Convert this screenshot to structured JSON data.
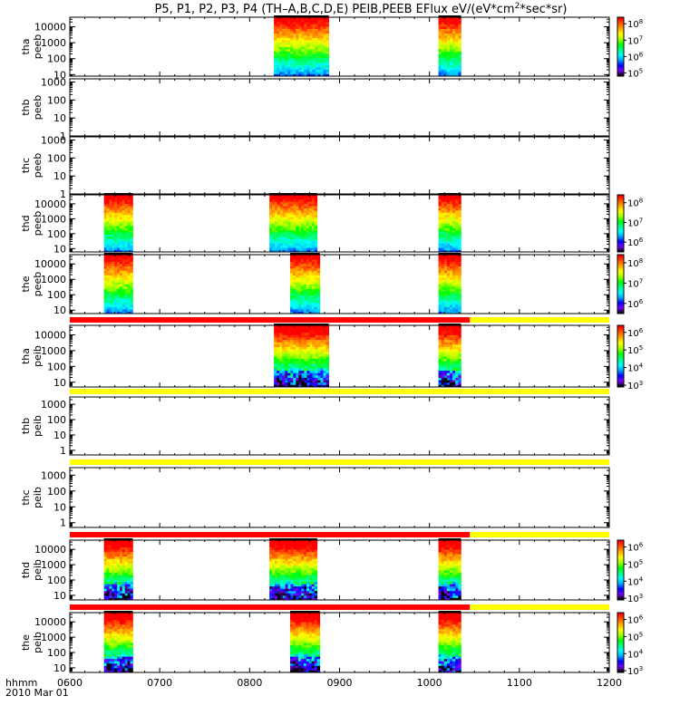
{
  "title_parts": [
    "P5, P1, P2, P3, P4 (TH–A,B,C,D,E) PEIB,PEEB EFlux eV/(eV*cm",
    "2",
    "*sec*sr)"
  ],
  "colors": {
    "flag_red": "#ff0000",
    "flag_yellow": "#ffff00",
    "axis": "#000000"
  },
  "footer": {
    "xunit": "hhmm",
    "date": "2010 Mar 01"
  },
  "chart_data": {
    "type": "heatmap",
    "x_range_hhmm": [
      "0600",
      "1200"
    ],
    "x_tick_labels": [
      "0600",
      "0700",
      "0800",
      "0900",
      "1000",
      "1100",
      "1200"
    ],
    "x_ticks_hours": [
      6,
      7,
      8,
      9,
      10,
      11,
      12
    ],
    "colorscale": [
      "#000000",
      "#7f00ff",
      "#0000ff",
      "#00aaff",
      "#00ffff",
      "#00ff7f",
      "#00ff00",
      "#aaff00",
      "#ffff00",
      "#ffaa00",
      "#ff5500",
      "#ff0000"
    ],
    "panels": [
      {
        "label": [
          "tha",
          "peeb"
        ],
        "yscale": "log",
        "ylim": [
          8,
          40000
        ],
        "ytick_values": [
          10,
          100,
          1000,
          10000
        ],
        "ytick_labels": [
          "10",
          "100",
          "1000",
          "10000"
        ],
        "intervals": [
          [
            8.27,
            8.88
          ],
          [
            10.1,
            10.35
          ]
        ],
        "colorbar": {
          "exponents": [
            "5",
            "6",
            "7",
            "8"
          ],
          "range_log": [
            4.8,
            8.4
          ]
        }
      },
      {
        "label": [
          "thb",
          "peeb"
        ],
        "yscale": "log",
        "ylim": [
          1,
          1500
        ],
        "ytick_values": [
          1,
          10,
          100,
          1000
        ],
        "ytick_labels": [
          "1",
          "10",
          "100",
          "1000"
        ],
        "intervals": []
      },
      {
        "label": [
          "thc",
          "peeb"
        ],
        "yscale": "log",
        "ylim": [
          1,
          1500
        ],
        "ytick_values": [
          1,
          10,
          100,
          1000
        ],
        "ytick_labels": [
          "1",
          "10",
          "100",
          "1000"
        ],
        "intervals": []
      },
      {
        "label": [
          "thd",
          "peeb"
        ],
        "yscale": "log",
        "ylim": [
          6,
          40000
        ],
        "ytick_values": [
          10,
          100,
          1000,
          10000
        ],
        "ytick_labels": [
          "10",
          "100",
          "1000",
          "10000"
        ],
        "intervals": [
          [
            6.38,
            6.7
          ],
          [
            8.22,
            8.75
          ],
          [
            10.1,
            10.35
          ]
        ],
        "colorbar": {
          "exponents": [
            "6",
            "7",
            "8"
          ],
          "range_log": [
            5.5,
            8.4
          ]
        }
      },
      {
        "label": [
          "the",
          "peeb"
        ],
        "yscale": "log",
        "ylim": [
          6,
          40000
        ],
        "ytick_values": [
          10,
          100,
          1000,
          10000
        ],
        "ytick_labels": [
          "10",
          "100",
          "1000",
          "10000"
        ],
        "intervals": [
          [
            6.38,
            6.7
          ],
          [
            8.45,
            8.78
          ],
          [
            10.1,
            10.35
          ]
        ],
        "colorbar": {
          "exponents": [
            "6",
            "7",
            "8"
          ],
          "range_log": [
            5.5,
            8.4
          ]
        }
      },
      {
        "label": [
          "tha",
          "peib"
        ],
        "yscale": "log",
        "ylim": [
          5,
          40000
        ],
        "ytick_values": [
          10,
          100,
          1000,
          10000
        ],
        "ytick_labels": [
          "10",
          "100",
          "1000",
          "10000"
        ],
        "intervals": [
          [
            8.27,
            8.88
          ],
          [
            10.1,
            10.35
          ]
        ],
        "flag_bar": [
          {
            "from": 6,
            "to": 10.45,
            "color": "red"
          },
          {
            "from": 10.45,
            "to": 12,
            "color": "yellow"
          }
        ],
        "colorbar": {
          "exponents": [
            "3",
            "4",
            "5",
            "6"
          ],
          "range_log": [
            2.9,
            6.4
          ]
        }
      },
      {
        "label": [
          "thb",
          "peib"
        ],
        "yscale": "log",
        "ylim": [
          0.5,
          3000
        ],
        "ytick_values": [
          1,
          10,
          100,
          1000
        ],
        "ytick_labels": [
          "1",
          "10",
          "100",
          "1000"
        ],
        "intervals": [],
        "flag_bar": [
          {
            "from": 6,
            "to": 12,
            "color": "yellow"
          }
        ]
      },
      {
        "label": [
          "thc",
          "peib"
        ],
        "yscale": "log",
        "ylim": [
          0.5,
          3000
        ],
        "ytick_values": [
          1,
          10,
          100,
          1000
        ],
        "ytick_labels": [
          "1",
          "10",
          "100",
          "1000"
        ],
        "intervals": [],
        "flag_bar": [
          {
            "from": 6,
            "to": 12,
            "color": "yellow"
          }
        ]
      },
      {
        "label": [
          "thd",
          "peib"
        ],
        "yscale": "log",
        "ylim": [
          5,
          40000
        ],
        "ytick_values": [
          10,
          100,
          1000,
          10000
        ],
        "ytick_labels": [
          "10",
          "100",
          "1000",
          "10000"
        ],
        "intervals": [
          [
            6.38,
            6.7
          ],
          [
            8.22,
            8.75
          ],
          [
            10.1,
            10.35
          ]
        ],
        "flag_bar": [
          {
            "from": 6,
            "to": 10.45,
            "color": "red"
          },
          {
            "from": 10.45,
            "to": 12,
            "color": "yellow"
          }
        ],
        "colorbar": {
          "exponents": [
            "3",
            "4",
            "5",
            "6"
          ],
          "range_log": [
            2.9,
            6.4
          ]
        }
      },
      {
        "label": [
          "the",
          "peib"
        ],
        "yscale": "log",
        "ylim": [
          5,
          40000
        ],
        "ytick_values": [
          10,
          100,
          1000,
          10000
        ],
        "ytick_labels": [
          "10",
          "100",
          "1000",
          "10000"
        ],
        "intervals": [
          [
            6.38,
            6.7
          ],
          [
            8.45,
            8.78
          ],
          [
            10.1,
            10.35
          ]
        ],
        "flag_bar": [
          {
            "from": 6,
            "to": 10.45,
            "color": "red"
          },
          {
            "from": 10.45,
            "to": 12,
            "color": "yellow"
          }
        ],
        "colorbar": {
          "exponents": [
            "3",
            "4",
            "5",
            "6"
          ],
          "range_log": [
            2.9,
            6.4
          ]
        }
      }
    ]
  }
}
